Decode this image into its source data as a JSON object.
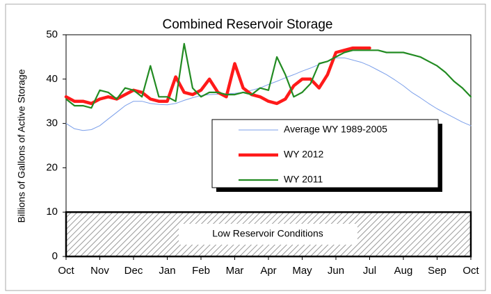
{
  "chart_data": {
    "type": "line",
    "title": "Combined Reservoir Storage",
    "y_label": "Billions of Gallons of Active Storage",
    "categories": [
      "Oct",
      null,
      null,
      null,
      "Nov",
      null,
      null,
      null,
      "Dec",
      null,
      null,
      null,
      "Jan",
      null,
      null,
      null,
      "Feb",
      null,
      null,
      null,
      "Mar",
      null,
      null,
      null,
      "Apr",
      null,
      null,
      null,
      "May",
      null,
      null,
      null,
      "Jun",
      null,
      null,
      null,
      "Jul",
      null,
      null,
      null,
      "Aug",
      null,
      null,
      null,
      "Sep",
      null,
      null,
      null,
      "Oct"
    ],
    "ylim": [
      0,
      50
    ],
    "yticks": [
      0,
      10,
      20,
      30,
      40,
      50
    ],
    "grid": false,
    "series": [
      {
        "name": "Average WY 1989-2005",
        "color": "#7b9fea",
        "width": 1,
        "values": [
          30,
          28.8,
          28.4,
          28.6,
          29.5,
          31,
          32.5,
          34,
          35,
          35,
          34.5,
          34.3,
          34.2,
          34.5,
          35.2,
          35.8,
          36.3,
          36.5,
          36.6,
          36.7,
          36.8,
          37,
          37.5,
          38,
          38.8,
          39.5,
          40.3,
          41,
          41.8,
          42.5,
          43.3,
          44,
          44.8,
          44.8,
          44.3,
          43.8,
          43,
          42,
          41,
          39.8,
          38.5,
          37,
          35.8,
          34.5,
          33.3,
          32.3,
          31.3,
          30.3,
          29.5
        ]
      },
      {
        "name": "WY 2012",
        "color": "#ff1a1a",
        "width": 4.5,
        "values": [
          36,
          35,
          35,
          34.5,
          35.5,
          36,
          35.5,
          36.5,
          37.5,
          37,
          35.5,
          35,
          35,
          40.5,
          37,
          36.5,
          37.5,
          40,
          37,
          36,
          43.5,
          38,
          36.5,
          36,
          35,
          34.5,
          35.5,
          38.5,
          40,
          40,
          38,
          41,
          46,
          46.5,
          47,
          47,
          47,
          null,
          null,
          null,
          null,
          null,
          null,
          null,
          null,
          null,
          null,
          null,
          null
        ]
      },
      {
        "name": "WY 2011",
        "color": "#228b22",
        "width": 2.2,
        "values": [
          35.5,
          34,
          34,
          33.5,
          37.5,
          37,
          35.5,
          38,
          37.5,
          36,
          43,
          36,
          36,
          35,
          48,
          38,
          36,
          37,
          37,
          36.5,
          36.5,
          37,
          36.5,
          38,
          37.5,
          45,
          41,
          36,
          37,
          39,
          43.5,
          44,
          45,
          46,
          46.5,
          46.5,
          46.5,
          46.5,
          46,
          46,
          46,
          45.5,
          45,
          44,
          43,
          41.5,
          39.5,
          38,
          36
        ]
      }
    ],
    "low_band": {
      "label": "Low Reservoir Conditions",
      "range": [
        0,
        10
      ]
    }
  }
}
